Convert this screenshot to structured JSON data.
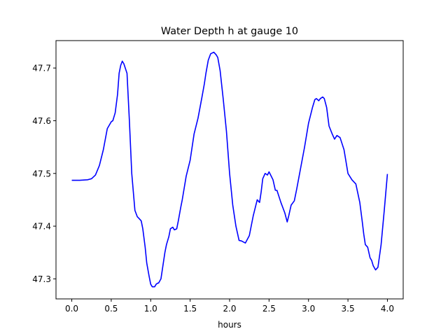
{
  "chart_data": {
    "type": "line",
    "title": "Water Depth h at gauge 10",
    "xlabel": "hours",
    "ylabel": "",
    "xlim": [
      -0.2,
      4.2
    ],
    "ylim": [
      47.262,
      47.752
    ],
    "xticks": [
      0.0,
      0.5,
      1.0,
      1.5,
      2.0,
      2.5,
      3.0,
      3.5,
      4.0
    ],
    "xtick_labels": [
      "0.0",
      "0.5",
      "1.0",
      "1.5",
      "2.0",
      "2.5",
      "3.0",
      "3.5",
      "4.0"
    ],
    "yticks": [
      47.3,
      47.4,
      47.5,
      47.6,
      47.7
    ],
    "ytick_labels": [
      "47.3",
      "47.4",
      "47.5",
      "47.6",
      "47.7"
    ],
    "grid": false,
    "line_color": "#0000ff",
    "series": [
      {
        "x": [
          0.0,
          0.1,
          0.2,
          0.25,
          0.3,
          0.35,
          0.4,
          0.45,
          0.5,
          0.52,
          0.55,
          0.58,
          0.6,
          0.62,
          0.64,
          0.66,
          0.7,
          0.73,
          0.76,
          0.8,
          0.83,
          0.85,
          0.88,
          0.9,
          0.93,
          0.95,
          0.98,
          1.0,
          1.02,
          1.05,
          1.07,
          1.09,
          1.1,
          1.13,
          1.15,
          1.18,
          1.2,
          1.23,
          1.25,
          1.28,
          1.3,
          1.33,
          1.35,
          1.38,
          1.4,
          1.45,
          1.5,
          1.55,
          1.6,
          1.65,
          1.68,
          1.7,
          1.73,
          1.76,
          1.8,
          1.83,
          1.85,
          1.88,
          1.92,
          1.96,
          2.0,
          2.04,
          2.08,
          2.12,
          2.15,
          2.2,
          2.25,
          2.3,
          2.35,
          2.38,
          2.4,
          2.42,
          2.45,
          2.48,
          2.5,
          2.55,
          2.58,
          2.6,
          2.65,
          2.7,
          2.73,
          2.75,
          2.78,
          2.82,
          2.85,
          2.9,
          2.95,
          3.0,
          3.05,
          3.08,
          3.1,
          3.13,
          3.15,
          3.18,
          3.2,
          3.23,
          3.26,
          3.3,
          3.33,
          3.36,
          3.4,
          3.45,
          3.5,
          3.55,
          3.6,
          3.65,
          3.68,
          3.7,
          3.72,
          3.75,
          3.78,
          3.8,
          3.82,
          3.85,
          3.88,
          3.92,
          3.96,
          4.0
        ],
        "y": [
          47.487,
          47.487,
          47.488,
          47.49,
          47.497,
          47.515,
          47.545,
          47.585,
          47.598,
          47.6,
          47.615,
          47.65,
          47.69,
          47.705,
          47.713,
          47.708,
          47.69,
          47.6,
          47.5,
          47.43,
          47.418,
          47.415,
          47.41,
          47.395,
          47.36,
          47.33,
          47.305,
          47.29,
          47.285,
          47.285,
          47.29,
          47.292,
          47.292,
          47.3,
          47.32,
          47.35,
          47.365,
          47.38,
          47.395,
          47.398,
          47.393,
          47.395,
          47.41,
          47.435,
          47.45,
          47.495,
          47.525,
          47.575,
          47.605,
          47.645,
          47.67,
          47.69,
          47.715,
          47.727,
          47.73,
          47.725,
          47.72,
          47.695,
          47.64,
          47.58,
          47.5,
          47.44,
          47.4,
          47.373,
          47.372,
          47.368,
          47.382,
          47.42,
          47.45,
          47.445,
          47.465,
          47.49,
          47.5,
          47.497,
          47.503,
          47.488,
          47.468,
          47.468,
          47.445,
          47.425,
          47.408,
          47.42,
          47.44,
          47.448,
          47.47,
          47.51,
          47.55,
          47.595,
          47.625,
          47.64,
          47.642,
          47.638,
          47.642,
          47.645,
          47.642,
          47.625,
          47.59,
          47.575,
          47.565,
          47.572,
          47.568,
          47.545,
          47.5,
          47.488,
          47.48,
          47.445,
          47.41,
          47.385,
          47.365,
          47.36,
          47.34,
          47.335,
          47.325,
          47.317,
          47.322,
          47.365,
          47.43,
          47.499
        ]
      }
    ]
  }
}
